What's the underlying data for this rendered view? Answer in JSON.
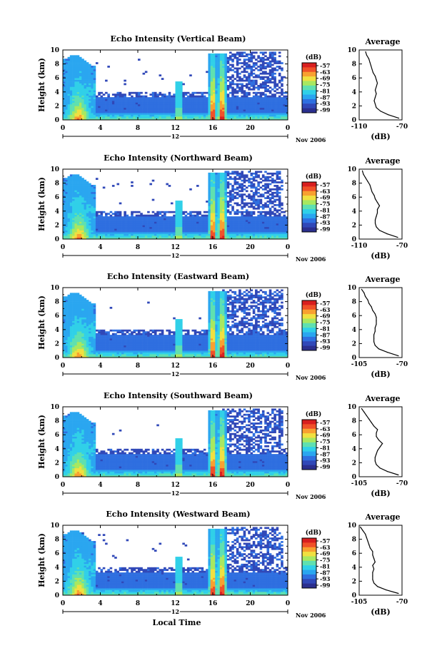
{
  "chart_data": [
    {
      "type": "heatmap",
      "title": "Echo Intensity (Vertical Beam)",
      "ylabel": "Height (km)",
      "ylim": [
        0,
        10
      ],
      "xlim": [
        0,
        24
      ],
      "xticks": [
        "0",
        "4",
        "8",
        "12",
        "16",
        "20",
        "0"
      ],
      "yticks": [
        "0",
        "2",
        "4",
        "6",
        "8",
        "10"
      ],
      "date_mark": "12",
      "date_label": "Nov 2006",
      "colorbar": {
        "label": "(dB)",
        "ticks": [
          "-57",
          "-63",
          "-69",
          "-75",
          "-81",
          "-87",
          "-93",
          "-99"
        ],
        "range": [
          -99,
          -57
        ]
      },
      "average": {
        "title": "Average",
        "xlabel": "(dB)",
        "xticks": [
          "-110",
          "-70"
        ],
        "xlim": [
          -110,
          -70
        ],
        "heights": [
          0,
          0.5,
          1,
          1.5,
          2,
          2.5,
          3,
          3.5,
          4,
          4.5,
          5,
          5.5,
          6,
          6.5,
          7,
          7.5,
          8,
          8.5,
          9,
          9.5
        ],
        "values": [
          -73,
          -83,
          -90,
          -94,
          -95,
          -96,
          -95,
          -94,
          -95,
          -94,
          -93,
          -94,
          -95,
          -97,
          -98,
          -99,
          -100,
          -101,
          -103,
          -104
        ]
      }
    },
    {
      "type": "heatmap",
      "title": "Echo Intensity (Northward Beam)",
      "ylabel": "Height (km)",
      "ylim": [
        0,
        10
      ],
      "xlim": [
        0,
        24
      ],
      "xticks": [
        "0",
        "4",
        "8",
        "12",
        "16",
        "20",
        "0"
      ],
      "yticks": [
        "0",
        "2",
        "4",
        "6",
        "8",
        "10"
      ],
      "date_mark": "12",
      "date_label": "Nov 2006",
      "colorbar": {
        "label": "(dB)",
        "ticks": [
          "-57",
          "-63",
          "-69",
          "-75",
          "-81",
          "-87",
          "-93",
          "-99"
        ],
        "range": [
          -99,
          -57
        ]
      },
      "average": {
        "title": "Average",
        "xlabel": "(dB)",
        "xticks": [
          "-110",
          "-70"
        ],
        "xlim": [
          -110,
          -70
        ],
        "heights": [
          0,
          0.5,
          1,
          1.5,
          2,
          2.5,
          3,
          3.5,
          4,
          4.5,
          5,
          5.5,
          6,
          6.5,
          7,
          7.5,
          8,
          8.5,
          9,
          9.5
        ],
        "values": [
          -74,
          -84,
          -91,
          -94,
          -95,
          -95,
          -94,
          -93,
          -93,
          -91,
          -93,
          -95,
          -96,
          -98,
          -99,
          -100,
          -102,
          -104,
          -106,
          -107
        ]
      }
    },
    {
      "type": "heatmap",
      "title": "Echo Intensity (Eastward Beam)",
      "ylabel": "Height (km)",
      "ylim": [
        0,
        10
      ],
      "xlim": [
        0,
        24
      ],
      "xticks": [
        "0",
        "4",
        "8",
        "12",
        "16",
        "20",
        "0"
      ],
      "yticks": [
        "0",
        "2",
        "4",
        "6",
        "8",
        "10"
      ],
      "date_mark": "12",
      "date_label": "Nov 2006",
      "colorbar": {
        "label": "(dB)",
        "ticks": [
          "-57",
          "-63",
          "-69",
          "-75",
          "-81",
          "-87",
          "-93",
          "-99"
        ],
        "range": [
          -99,
          -57
        ]
      },
      "average": {
        "title": "Average",
        "xlabel": "(dB)",
        "xticks": [
          "-105",
          "-70"
        ],
        "xlim": [
          -105,
          -70
        ],
        "heights": [
          0,
          0.5,
          1,
          1.5,
          2,
          2.5,
          3,
          3.5,
          4,
          4.5,
          5,
          5.5,
          6,
          6.5,
          7,
          7.5,
          8,
          8.5,
          9,
          9.5
        ],
        "values": [
          -73,
          -82,
          -89,
          -92,
          -93,
          -93,
          -93,
          -92,
          -92,
          -91,
          -91,
          -91,
          -92,
          -94,
          -95,
          -97,
          -98,
          -100,
          -101,
          -103
        ]
      }
    },
    {
      "type": "heatmap",
      "title": "Echo Intensity (Southward Beam)",
      "ylabel": "Height (km)",
      "ylim": [
        0,
        10
      ],
      "xlim": [
        0,
        24
      ],
      "xticks": [
        "0",
        "4",
        "8",
        "12",
        "16",
        "20",
        "0"
      ],
      "yticks": [
        "0",
        "2",
        "4",
        "6",
        "8",
        "10"
      ],
      "date_mark": "12",
      "date_label": "Nov 2006",
      "colorbar": {
        "label": "(dB)",
        "ticks": [
          "-57",
          "-63",
          "-69",
          "-75",
          "-81",
          "-87",
          "-93",
          "-99"
        ],
        "range": [
          -99,
          -57
        ]
      },
      "average": {
        "title": "Average",
        "xlabel": "(dB)",
        "xticks": [
          "-105",
          "-70"
        ],
        "xlim": [
          -105,
          -70
        ],
        "heights": [
          0,
          0.5,
          1,
          1.5,
          2,
          2.5,
          3,
          3.5,
          4,
          4.5,
          5,
          5.5,
          6,
          6.5,
          7,
          7.5,
          8,
          8.5,
          9,
          9.5
        ],
        "values": [
          -73,
          -82,
          -88,
          -91,
          -92,
          -92,
          -91,
          -90,
          -88,
          -86,
          -89,
          -91,
          -91,
          -90,
          -93,
          -95,
          -97,
          -99,
          -101,
          -103
        ]
      }
    },
    {
      "type": "heatmap",
      "title": "Echo Intensity (Westward Beam)",
      "ylabel": "Height (km)",
      "xlabel": "Local Time",
      "ylim": [
        0,
        10
      ],
      "xlim": [
        0,
        24
      ],
      "xticks": [
        "0",
        "4",
        "8",
        "12",
        "16",
        "20",
        "0"
      ],
      "yticks": [
        "0",
        "2",
        "4",
        "6",
        "8",
        "10"
      ],
      "date_mark": "12",
      "date_label": "Nov 2006",
      "colorbar": {
        "label": "(dB)",
        "ticks": [
          "-57",
          "-63",
          "-69",
          "-75",
          "-81",
          "-87",
          "-93",
          "-99"
        ],
        "range": [
          -99,
          -57
        ]
      },
      "average": {
        "title": "Average",
        "xlabel": "(dB)",
        "xticks": [
          "-105",
          "-70"
        ],
        "xlim": [
          -105,
          -70
        ],
        "heights": [
          0,
          0.5,
          1,
          1.5,
          2,
          2.5,
          3,
          3.5,
          4,
          4.5,
          5,
          5.5,
          6,
          6.5,
          7,
          7.5,
          8,
          8.5,
          9,
          9.5
        ],
        "values": [
          -73,
          -83,
          -90,
          -93,
          -94,
          -94,
          -94,
          -93,
          -94,
          -92,
          -93,
          -94,
          -94,
          -96,
          -97,
          -98,
          -99,
          -100,
          -102,
          -104
        ]
      }
    }
  ],
  "colors": {
    "scale": [
      "#2b2f8f",
      "#3048b8",
      "#2f6fe0",
      "#2aa6f0",
      "#30d0e8",
      "#5fe0b0",
      "#a8e860",
      "#f0e040",
      "#f8a030",
      "#f05028",
      "#d81f1f"
    ]
  }
}
